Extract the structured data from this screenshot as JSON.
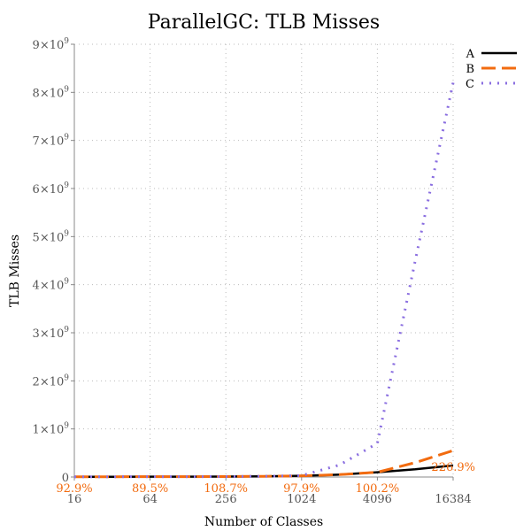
{
  "chart_data": {
    "type": "line",
    "title": "ParallelGC: TLB Misses",
    "xlabel": "Number of Classes",
    "ylabel": "TLB Misses",
    "x_scale": "log2",
    "x_ticks": [
      "16",
      "64",
      "256",
      "1024",
      "4096",
      "16384"
    ],
    "x_values": [
      16,
      32,
      64,
      128,
      256,
      512,
      1024,
      2048,
      4096,
      8192,
      16384
    ],
    "xlim": [
      16,
      16384
    ],
    "y_ticks": [
      {
        "value": 0,
        "mantissa": "0",
        "exp": ""
      },
      {
        "value": 1000000000,
        "mantissa": "1×10",
        "exp": "9"
      },
      {
        "value": 2000000000,
        "mantissa": "2×10",
        "exp": "9"
      },
      {
        "value": 3000000000,
        "mantissa": "3×10",
        "exp": "9"
      },
      {
        "value": 4000000000,
        "mantissa": "4×10",
        "exp": "9"
      },
      {
        "value": 5000000000,
        "mantissa": "5×10",
        "exp": "9"
      },
      {
        "value": 6000000000,
        "mantissa": "6×10",
        "exp": "9"
      },
      {
        "value": 7000000000,
        "mantissa": "7×10",
        "exp": "9"
      },
      {
        "value": 8000000000,
        "mantissa": "8×10",
        "exp": "9"
      },
      {
        "value": 9000000000,
        "mantissa": "9×10",
        "exp": "9"
      }
    ],
    "ylim": [
      0,
      9000000000
    ],
    "grid": true,
    "legend_position": "top-right",
    "series": [
      {
        "name": "A",
        "color": "#000000",
        "style": "solid",
        "values": [
          5000000,
          6000000,
          7000000,
          8000000,
          10000000,
          15000000,
          25000000,
          50000000,
          100000000,
          160000000,
          240000000
        ]
      },
      {
        "name": "B",
        "color": "#f26b0f",
        "style": "dashed",
        "values": [
          5000000,
          6000000,
          7000000,
          8000000,
          10000000,
          15000000,
          24000000,
          50000000,
          100000000,
          300000000,
          550000000
        ]
      },
      {
        "name": "C",
        "color": "#8a6ee0",
        "style": "dotted",
        "values": [
          5000000,
          6000000,
          7000000,
          8000000,
          10000000,
          15000000,
          30000000,
          250000000,
          700000000,
          4500000000,
          8200000000
        ]
      }
    ],
    "annotations": [
      {
        "text": "92.9%",
        "x": 16
      },
      {
        "text": "89.5%",
        "x": 64
      },
      {
        "text": "108.7%",
        "x": 256
      },
      {
        "text": "97.9%",
        "x": 1024
      },
      {
        "text": "100.2%",
        "x": 4096
      },
      {
        "text": "226.9%",
        "x": 16384
      }
    ],
    "annotation_color": "#f26b0f"
  }
}
